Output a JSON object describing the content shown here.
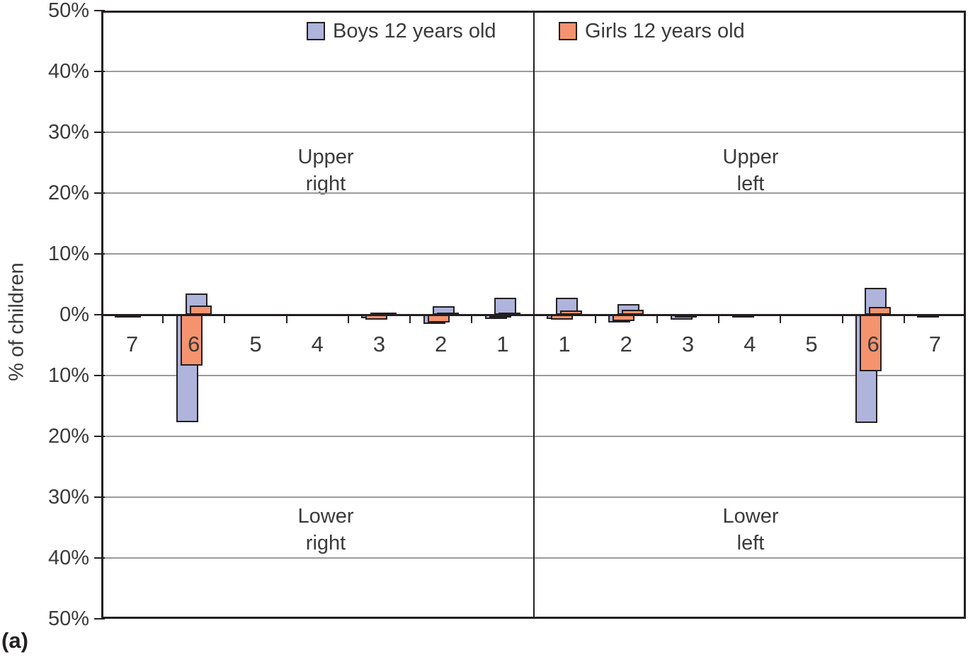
{
  "figure": {
    "panel_label": "(a)",
    "background": "#ffffff"
  },
  "chart_data": {
    "type": "bar",
    "title": "",
    "ylabel": "% of children",
    "units": "percent of children",
    "ylim": [
      -50,
      50
    ],
    "y_tick_step": 10,
    "grid": true,
    "legend_position": "top",
    "y_tick_labels_top_to_bottom": [
      "50%",
      "40%",
      "30%",
      "20%",
      "10%",
      "0%",
      "10%",
      "20%",
      "30%",
      "40%",
      "50%"
    ],
    "legend": [
      {
        "label": "Boys 12 years old",
        "color": "#aeb4db"
      },
      {
        "label": "Girls 12 years old",
        "color": "#f5936f"
      }
    ],
    "annotations": {
      "upper_right": [
        "Upper",
        "right"
      ],
      "upper_left": [
        "Upper",
        "left"
      ],
      "lower_right": [
        "Lower",
        "right"
      ],
      "lower_left": [
        "Lower",
        "left"
      ]
    },
    "colors": {
      "boys_fill": "#aeb4db",
      "girls_fill": "#f5936f",
      "bar_border": "#231f20",
      "axis": "#231f20",
      "gridline": "#9b9b9b",
      "text": "#3a3a3a"
    },
    "x_groups": [
      {
        "side": "right",
        "teeth": [
          "7",
          "6",
          "5",
          "4",
          "3",
          "2",
          "1"
        ],
        "boys_upper": [
          0,
          3.5,
          0,
          0,
          0.3,
          1.4,
          2.8
        ],
        "girls_upper": [
          0,
          1.5,
          0,
          0,
          0.3,
          0.3,
          0.3
        ],
        "boys_lower": [
          0.4,
          17.7,
          0,
          0,
          0.6,
          1.5,
          0.7
        ],
        "girls_lower": [
          0.3,
          8.4,
          0,
          0,
          0.8,
          1.3,
          0.3
        ]
      },
      {
        "side": "left",
        "teeth": [
          "1",
          "2",
          "3",
          "4",
          "5",
          "6",
          "7"
        ],
        "boys_upper": [
          2.8,
          1.8,
          0,
          0,
          0,
          4.4,
          0
        ],
        "girls_upper": [
          0.7,
          0.8,
          0,
          0,
          0,
          1.3,
          0
        ],
        "boys_lower": [
          0.7,
          1.3,
          0.8,
          0.25,
          0,
          17.8,
          0.3
        ],
        "girls_lower": [
          0.8,
          1.0,
          0.35,
          0,
          0,
          9.3,
          0
        ]
      }
    ]
  }
}
